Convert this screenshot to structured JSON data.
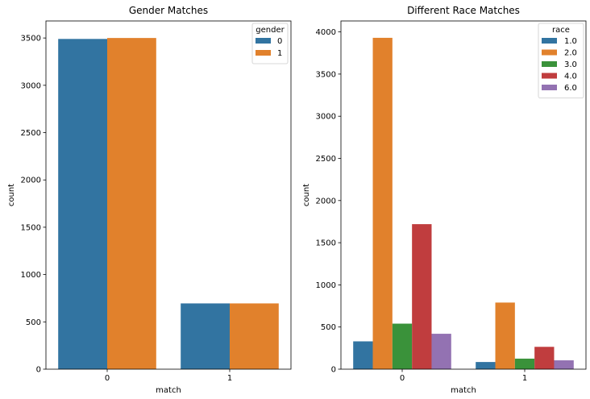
{
  "chart_data": [
    {
      "type": "bar",
      "title": "Gender Matches",
      "xlabel": "match",
      "ylabel": "count",
      "categories": [
        "0",
        "1"
      ],
      "ylim": [
        0,
        3680
      ],
      "yticks": [
        0,
        500,
        1000,
        1500,
        2000,
        2500,
        3000,
        3500
      ],
      "legend": {
        "title": "gender",
        "placement": "top-right"
      },
      "series": [
        {
          "name": "0",
          "color": "#3274a1",
          "values": [
            3490,
            695
          ]
        },
        {
          "name": "1",
          "color": "#e1812c",
          "values": [
            3500,
            695
          ]
        }
      ]
    },
    {
      "type": "bar",
      "title": "Different Race Matches",
      "xlabel": "match",
      "ylabel": "count",
      "categories": [
        "0",
        "1"
      ],
      "ylim": [
        0,
        4130
      ],
      "yticks": [
        0,
        500,
        1000,
        1500,
        2000,
        2500,
        3000,
        3500,
        4000
      ],
      "legend": {
        "title": "race",
        "placement": "top-right"
      },
      "series": [
        {
          "name": "1.0",
          "color": "#3274a1",
          "values": [
            330,
            85
          ]
        },
        {
          "name": "2.0",
          "color": "#e1812c",
          "values": [
            3930,
            790
          ]
        },
        {
          "name": "3.0",
          "color": "#3a923a",
          "values": [
            540,
            125
          ]
        },
        {
          "name": "4.0",
          "color": "#c03d3e",
          "values": [
            1720,
            265
          ]
        },
        {
          "name": "6.0",
          "color": "#9372b2",
          "values": [
            420,
            105
          ]
        }
      ]
    }
  ]
}
